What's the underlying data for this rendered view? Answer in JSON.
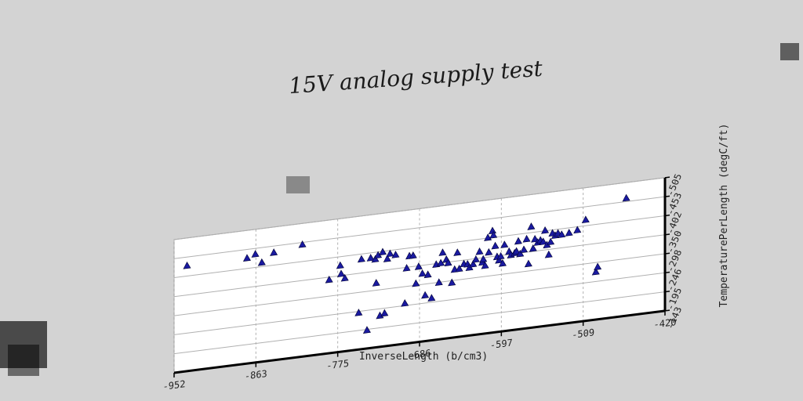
{
  "chart_data": {
    "type": "scatter",
    "title": "15V analog supply test",
    "xlabel": "InverseLength (b/cm3)",
    "ylabel": "TemperaturePerLength (degC/ft)",
    "xlim": [
      -952,
      -420
    ],
    "ylim": [
      -505,
      -143
    ],
    "x_ticks": [
      "-952",
      "-863",
      "-775",
      "-686",
      "-597",
      "-509",
      "-420"
    ],
    "y_ticks": [
      "-143",
      "-195",
      "-246",
      "-298",
      "-350",
      "-402",
      "-453",
      "-505"
    ],
    "grid": true,
    "marker": "triangle",
    "colors": {
      "marker": "#1a1aa0",
      "background": "#d3d3d3",
      "plot_area": "#ffffff",
      "grid": "#b0b0b0"
    },
    "points": [
      [
        -938,
        -218
      ],
      [
        -873,
        -218
      ],
      [
        -864,
        -210
      ],
      [
        -857,
        -235
      ],
      [
        -844,
        -212
      ],
      [
        -813,
        -200
      ],
      [
        -784,
        -305
      ],
      [
        -772,
        -270
      ],
      [
        -771,
        -293
      ],
      [
        -767,
        -306
      ],
      [
        -752,
        -405
      ],
      [
        -749,
        -260
      ],
      [
        -743,
        -455
      ],
      [
        -739,
        -260
      ],
      [
        -734,
        -265
      ],
      [
        -733,
        -330
      ],
      [
        -731,
        -255
      ],
      [
        -729,
        -420
      ],
      [
        -726,
        -248
      ],
      [
        -724,
        -415
      ],
      [
        -721,
        -268
      ],
      [
        -718,
        -255
      ],
      [
        -712,
        -260
      ],
      [
        -702,
        -395
      ],
      [
        -700,
        -300
      ],
      [
        -697,
        -268
      ],
      [
        -693,
        -268
      ],
      [
        -690,
        -345
      ],
      [
        -687,
        -300
      ],
      [
        -683,
        -320
      ],
      [
        -680,
        -380
      ],
      [
        -677,
        -325
      ],
      [
        -673,
        -390
      ],
      [
        -668,
        -300
      ],
      [
        -665,
        -350
      ],
      [
        -663,
        -298
      ],
      [
        -661,
        -270
      ],
      [
        -657,
        -290
      ],
      [
        -655,
        -300
      ],
      [
        -651,
        -355
      ],
      [
        -648,
        -320
      ],
      [
        -645,
        -275
      ],
      [
        -643,
        -320
      ],
      [
        -638,
        -308
      ],
      [
        -634,
        -310
      ],
      [
        -632,
        -320
      ],
      [
        -628,
        -312
      ],
      [
        -625,
        -300
      ],
      [
        -621,
        -280
      ],
      [
        -618,
        -310
      ],
      [
        -617,
        -302
      ],
      [
        -615,
        -320
      ],
      [
        -612,
        -245
      ],
      [
        -611,
        -285
      ],
      [
        -607,
        -228
      ],
      [
        -606,
        -240
      ],
      [
        -604,
        -270
      ],
      [
        -602,
        -300
      ],
      [
        -600,
        -310
      ],
      [
        -598,
        -300
      ],
      [
        -596,
        -320
      ],
      [
        -594,
        -270
      ],
      [
        -589,
        -290
      ],
      [
        -587,
        -300
      ],
      [
        -583,
        -296
      ],
      [
        -581,
        -292
      ],
      [
        -579,
        -265
      ],
      [
        -577,
        -300
      ],
      [
        -573,
        -290
      ],
      [
        -570,
        -262
      ],
      [
        -568,
        -330
      ],
      [
        -565,
        -230
      ],
      [
        -563,
        -290
      ],
      [
        -561,
        -265
      ],
      [
        -558,
        -275
      ],
      [
        -555,
        -270
      ],
      [
        -552,
        -275
      ],
      [
        -550,
        -245
      ],
      [
        -548,
        -285
      ],
      [
        -546,
        -312
      ],
      [
        -544,
        -278
      ],
      [
        -542,
        -255
      ],
      [
        -539,
        -262
      ],
      [
        -536,
        -257
      ],
      [
        -532,
        -262
      ],
      [
        -524,
        -260
      ],
      [
        -515,
        -255
      ],
      [
        -506,
        -230
      ],
      [
        -495,
        -375
      ],
      [
        -493,
        -362
      ],
      [
        -462,
        -185
      ]
    ]
  }
}
